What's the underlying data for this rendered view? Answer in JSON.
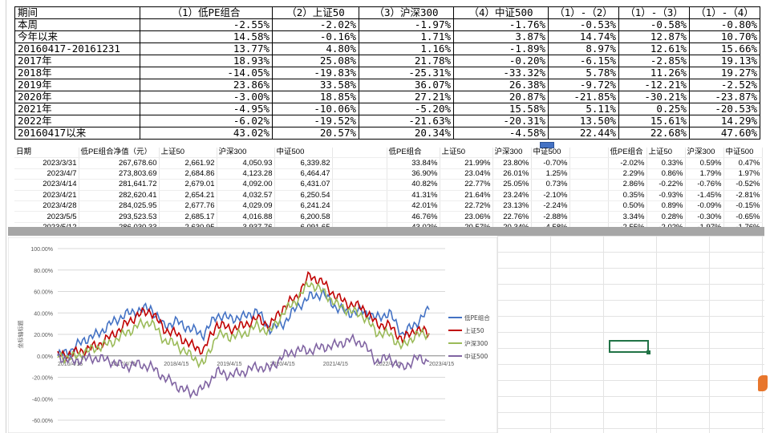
{
  "summary": {
    "headers": [
      "期间",
      "（1）低PE组合",
      "（2）上证50",
      "（3）沪深300",
      "（4）中证500",
      "（1）-（2）",
      "（1）-（3）",
      "（1）-（4）"
    ],
    "rows": [
      [
        "本周",
        "-2.55%",
        "-2.02%",
        "-1.97%",
        "-1.76%",
        "-0.53%",
        "-0.58%",
        "-0.80%"
      ],
      [
        "今年以来",
        "14.58%",
        "-0.16%",
        "1.71%",
        "3.87%",
        "14.74%",
        "12.87%",
        "10.70%"
      ],
      [
        "20160417-20161231",
        "13.77%",
        "4.80%",
        "1.16%",
        "-1.89%",
        "8.97%",
        "12.61%",
        "15.66%"
      ],
      [
        "2017年",
        "18.93%",
        "25.08%",
        "21.78%",
        "-0.20%",
        "-6.15%",
        "-2.85%",
        "19.13%"
      ],
      [
        "2018年",
        "-14.05%",
        "-19.83%",
        "-25.31%",
        "-33.32%",
        "5.78%",
        "11.26%",
        "19.27%"
      ],
      [
        "2019年",
        "23.86%",
        "33.58%",
        "36.07%",
        "26.38%",
        "-9.72%",
        "-12.21%",
        "-2.52%"
      ],
      [
        "2020年",
        "-3.00%",
        "18.85%",
        "27.21%",
        "20.87%",
        "-21.85%",
        "-30.21%",
        "-23.87%"
      ],
      [
        "2021年",
        "-4.95%",
        "-10.06%",
        "-5.20%",
        "15.58%",
        "5.11%",
        "0.25%",
        "-20.53%"
      ],
      [
        "2022年",
        "-6.02%",
        "-19.52%",
        "-21.63%",
        "-20.31%",
        "13.50%",
        "15.61%",
        "14.29%"
      ],
      [
        "20160417以来",
        "43.02%",
        "20.57%",
        "20.34%",
        "-4.58%",
        "22.44%",
        "22.68%",
        "47.60%"
      ]
    ]
  },
  "grid": {
    "headers": [
      "日期",
      "低PE组合净值（元）",
      "上证50",
      "沪深300",
      "中证500",
      "",
      "低PE组合",
      "上证50",
      "沪深300",
      "中证500",
      "",
      "低PE组合",
      "上证50",
      "沪深300",
      "中证500"
    ],
    "rows": [
      [
        "2023/3/31",
        "267,678.60",
        "2,661.92",
        "4,050.93",
        "6,339.82",
        "",
        "33.84%",
        "21.99%",
        "23.80%",
        "-0.70%",
        "",
        "-2.02%",
        "0.33%",
        "0.59%",
        "0.47%"
      ],
      [
        "2023/4/7",
        "273,803.69",
        "2,684.86",
        "4,123.28",
        "6,464.47",
        "",
        "36.90%",
        "23.04%",
        "26.01%",
        "1.25%",
        "",
        "2.29%",
        "0.86%",
        "1.79%",
        "1.97%"
      ],
      [
        "2023/4/14",
        "281,641.72",
        "2,679.01",
        "4,092.00",
        "6,431.07",
        "",
        "40.82%",
        "22.77%",
        "25.05%",
        "0.73%",
        "",
        "2.86%",
        "-0.22%",
        "-0.76%",
        "-0.52%"
      ],
      [
        "2023/4/21",
        "282,620.41",
        "2,654.21",
        "4,032.57",
        "6,250.54",
        "",
        "41.31%",
        "21.64%",
        "23.24%",
        "-2.10%",
        "",
        "0.35%",
        "-0.93%",
        "-1.45%",
        "-2.81%"
      ],
      [
        "2023/4/28",
        "284,025.95",
        "2,677.76",
        "4,029.09",
        "6,241.24",
        "",
        "42.01%",
        "22.72%",
        "23.13%",
        "-2.24%",
        "",
        "0.50%",
        "0.89%",
        "-0.09%",
        "-0.15%"
      ],
      [
        "2023/5/5",
        "293,523.53",
        "2,685.17",
        "4,016.88",
        "6,200.58",
        "",
        "46.76%",
        "23.06%",
        "22.76%",
        "-2.88%",
        "",
        "3.34%",
        "0.28%",
        "-0.30%",
        "-0.65%"
      ],
      [
        "2023/5/12",
        "286,030.33",
        "2,630.95",
        "3,937.76",
        "6,091.65",
        "",
        "43.02%",
        "20.57%",
        "20.34%",
        "-4.58%",
        "",
        "-2.55%",
        "-2.02%",
        "-1.97%",
        "-1.76%"
      ]
    ]
  },
  "chart_data": {
    "type": "line",
    "ylabel": "坐标轴标题",
    "ylim": [
      -60,
      100
    ],
    "yticks": [
      "100.00%",
      "80.00%",
      "60.00%",
      "40.00%",
      "20.00%",
      "0.00%",
      "-20.00%",
      "-40.00%",
      "-60.00%"
    ],
    "xticks": [
      "2016/4/15",
      "2017/4/15",
      "2018/4/15",
      "2019/4/15",
      "2020/4/15",
      "2021/4/15",
      "2022/4/15",
      "2023/4/15"
    ],
    "x": [
      "2016/4",
      "2016/7",
      "2016/10",
      "2017/1",
      "2017/4",
      "2017/7",
      "2017/10",
      "2018/1",
      "2018/4",
      "2018/7",
      "2018/10",
      "2019/1",
      "2019/4",
      "2019/7",
      "2019/10",
      "2020/1",
      "2020/4",
      "2020/7",
      "2020/10",
      "2021/1",
      "2021/4",
      "2021/7",
      "2021/10",
      "2022/1",
      "2022/4",
      "2022/7",
      "2022/10",
      "2023/1",
      "2023/5"
    ],
    "series": [
      {
        "name": "低PE组合",
        "color": "#4472c4",
        "values": [
          0,
          5,
          15,
          20,
          30,
          38,
          42,
          45,
          28,
          32,
          25,
          20,
          38,
          35,
          36,
          42,
          25,
          30,
          45,
          55,
          58,
          45,
          40,
          42,
          35,
          40,
          20,
          30,
          43
        ]
      },
      {
        "name": "上证50",
        "color": "#c00000",
        "values": [
          0,
          2,
          5,
          10,
          18,
          28,
          38,
          42,
          25,
          20,
          10,
          5,
          30,
          25,
          28,
          35,
          28,
          45,
          55,
          75,
          68,
          55,
          48,
          45,
          30,
          28,
          15,
          25,
          21
        ]
      },
      {
        "name": "沪深300",
        "color": "#9bbb59",
        "values": [
          0,
          -2,
          3,
          8,
          12,
          20,
          28,
          32,
          15,
          10,
          0,
          -8,
          20,
          18,
          20,
          28,
          22,
          40,
          52,
          68,
          60,
          48,
          42,
          38,
          22,
          20,
          8,
          20,
          20
        ]
      },
      {
        "name": "中证500",
        "color": "#8064a2",
        "values": [
          0,
          -5,
          -3,
          -2,
          -5,
          -10,
          -8,
          -10,
          -20,
          -28,
          -35,
          -30,
          -15,
          -18,
          -15,
          -10,
          -12,
          0,
          5,
          5,
          8,
          10,
          15,
          12,
          -5,
          -2,
          -12,
          -2,
          -5
        ]
      }
    ]
  }
}
